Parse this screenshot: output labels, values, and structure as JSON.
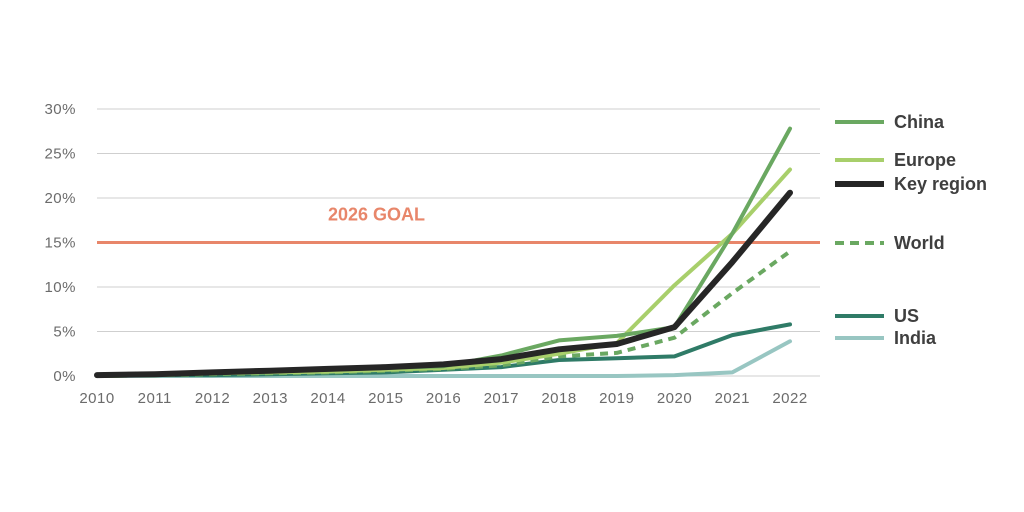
{
  "chart_data": {
    "type": "line",
    "title": "",
    "xlabel": "",
    "ylabel": "",
    "x": [
      "2010",
      "2011",
      "2012",
      "2013",
      "2014",
      "2015",
      "2016",
      "2017",
      "2018",
      "2019",
      "2020",
      "2021",
      "2022"
    ],
    "ylim": [
      0,
      30
    ],
    "yticks": [
      "0%",
      "5%",
      "10%",
      "15%",
      "20%",
      "25%",
      "30%"
    ],
    "grid": "horizontal",
    "legend_position": "right",
    "goal": {
      "label": "2026 GOAL",
      "value": 15,
      "color": "#e8866a"
    },
    "series": [
      {
        "name": "China",
        "color": "#6aa861",
        "style": "solid",
        "width": 4,
        "values": [
          0,
          0.1,
          0.3,
          0.5,
          0.7,
          0.9,
          1.1,
          2.3,
          4.0,
          4.5,
          5.5,
          16,
          27.8
        ]
      },
      {
        "name": "Europe",
        "color": "#a8cf6b",
        "style": "solid",
        "width": 4,
        "values": [
          0,
          0.1,
          0.3,
          0.4,
          0.5,
          0.7,
          0.9,
          1.5,
          2.5,
          3.7,
          10.2,
          16,
          23.2
        ]
      },
      {
        "name": "Key region",
        "color": "#262626",
        "style": "solid",
        "width": 6,
        "values": [
          0.1,
          0.2,
          0.4,
          0.6,
          0.8,
          1.0,
          1.3,
          1.9,
          3.0,
          3.6,
          5.5,
          12.8,
          20.6
        ]
      },
      {
        "name": "World",
        "color": "#6aa861",
        "style": "dashed",
        "width": 4,
        "values": [
          0,
          0.1,
          0.2,
          0.3,
          0.4,
          0.6,
          0.8,
          1.2,
          2.2,
          2.6,
          4.3,
          9.3,
          14.0
        ]
      },
      {
        "name": "US",
        "color": "#2f7b67",
        "style": "solid",
        "width": 4,
        "values": [
          0,
          0.1,
          0.1,
          0.2,
          0.3,
          0.4,
          0.7,
          1.0,
          1.8,
          2.0,
          2.2,
          4.6,
          5.8
        ]
      },
      {
        "name": "India",
        "color": "#98c6c2",
        "style": "solid",
        "width": 4,
        "values": [
          0,
          0,
          0,
          0,
          0,
          0,
          0,
          0,
          0,
          0,
          0.1,
          0.4,
          3.9
        ]
      }
    ]
  }
}
